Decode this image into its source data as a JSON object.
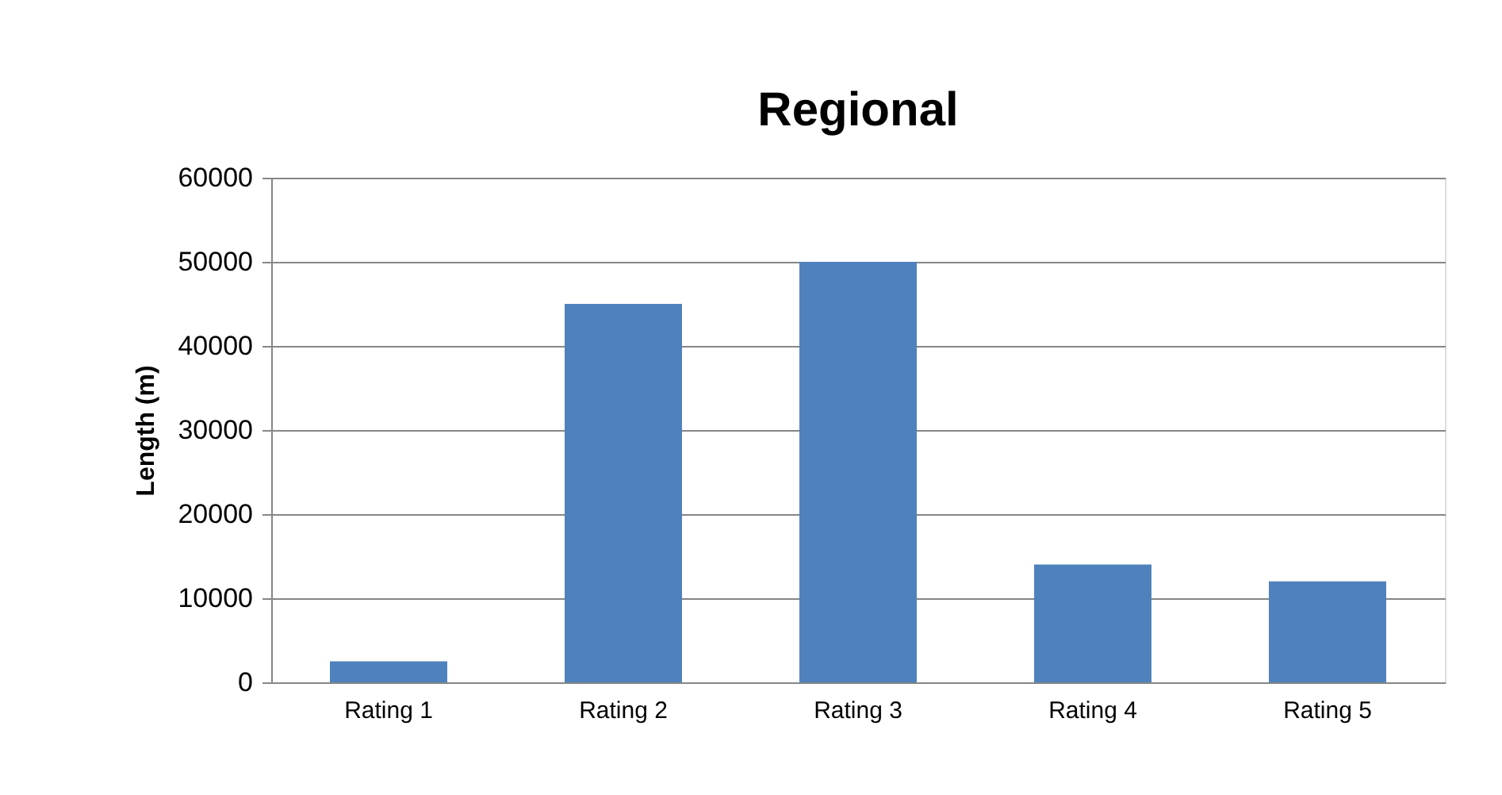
{
  "chart_data": {
    "type": "bar",
    "title": "Regional",
    "ylabel": "Length (m)",
    "categories": [
      "Rating 1",
      "Rating 2",
      "Rating 3",
      "Rating 4",
      "Rating 5"
    ],
    "values": [
      2500,
      45000,
      50000,
      14000,
      12000
    ],
    "color": "#4f81bd",
    "ylim": [
      0,
      60000
    ],
    "yticks": [
      0,
      10000,
      20000,
      30000,
      40000,
      50000,
      60000
    ],
    "grid": "y"
  }
}
